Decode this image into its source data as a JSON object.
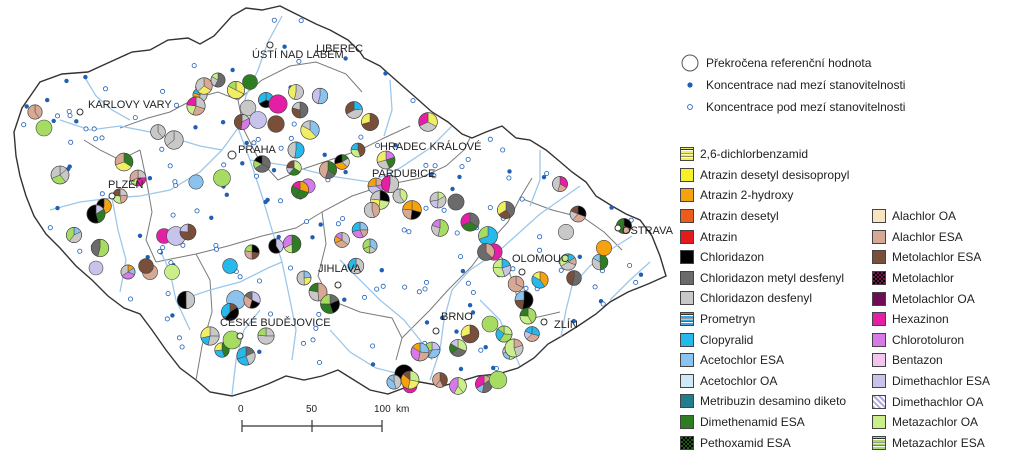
{
  "cities": {
    "usti": "ÚSTÍ NAD LABEM",
    "liberec": "LIBEREC",
    "karlovy_vary": "KARLOVY VARY",
    "praha": "PRAHA",
    "hradec": "HRADEC KRÁLOVÉ",
    "pardubice": "PARDUBICE",
    "plzen": "PLZEŇ",
    "jihlava": "JIHLAVA",
    "olomouc": "OLOMOUC",
    "ostrava": "OSTRAVA",
    "ceske_budejovice": "ČESKÉ BUDĚJOVICE",
    "brno": "BRNO",
    "zlin": "ZLÍN"
  },
  "legend_symbols": [
    {
      "label": "Překročena referenční hodnota",
      "symbol": "ring"
    },
    {
      "label": "Koncentrace nad mezí stanovitelnosti",
      "symbol": "dot-filled"
    },
    {
      "label": "Koncentrace pod mezí stanovitelnosti",
      "symbol": "dot-hollow"
    }
  ],
  "legend_substances_left": [
    {
      "label": "2,6-dichlorbenzamid",
      "color": "#f2ee64",
      "pattern": "hstripes"
    },
    {
      "label": "Atrazin desetyl desisopropyl",
      "color": "#f6f22a",
      "pattern": "solid"
    },
    {
      "label": "Atrazin 2-hydroxy",
      "color": "#f5a20e",
      "pattern": "solid"
    },
    {
      "label": "Atrazin desetyl",
      "color": "#ee5b1c",
      "pattern": "solid"
    },
    {
      "label": "Atrazin",
      "color": "#e41a1c",
      "pattern": "solid"
    },
    {
      "label": "Chloridazon",
      "color": "#000000",
      "pattern": "solid"
    },
    {
      "label": "Chloridazon metyl desfenyl",
      "color": "#6b6b6b",
      "pattern": "solid"
    },
    {
      "label": "Chloridazon desfenyl",
      "color": "#c8c8c8",
      "pattern": "solid"
    },
    {
      "label": "Prometryn",
      "color": "#3ea3e0",
      "pattern": "hstripes"
    },
    {
      "label": "Clopyralid",
      "color": "#27b9ec",
      "pattern": "solid"
    },
    {
      "label": "Acetochlor ESA",
      "color": "#8cc2ee",
      "pattern": "solid"
    },
    {
      "label": "Acetochlor OA",
      "color": "#cfe9f7",
      "pattern": "solid"
    },
    {
      "label": "Metribuzin desamino diketo",
      "color": "#1f7f8f",
      "pattern": "solid"
    },
    {
      "label": "Dimethenamid ESA",
      "color": "#2e7d22",
      "pattern": "solid"
    },
    {
      "label": "Pethoxamid ESA",
      "color": "#1e5a18",
      "pattern": "checker"
    }
  ],
  "legend_substances_right": [
    {
      "label": "Alachlor OA",
      "color": "#f9e4bf",
      "pattern": "solid"
    },
    {
      "label": "Alachlor ESA",
      "color": "#d7a994",
      "pattern": "solid"
    },
    {
      "label": "Metolachlor ESA",
      "color": "#7a4f3a",
      "pattern": "solid"
    },
    {
      "label": "Metolachlor",
      "color": "#7a0d4a",
      "pattern": "checker"
    },
    {
      "label": "Metolachlor OA",
      "color": "#6e0d56",
      "pattern": "solid"
    },
    {
      "label": "Hexazinon",
      "color": "#e51ea6",
      "pattern": "solid"
    },
    {
      "label": "Chlorotoluron",
      "color": "#d57ae8",
      "pattern": "solid"
    },
    {
      "label": "Bentazon",
      "color": "#f3c5ee",
      "pattern": "solid"
    },
    {
      "label": "Dimethachlor ESA",
      "color": "#c8c3ea",
      "pattern": "solid"
    },
    {
      "label": "Dimethachlor OA",
      "color": "#b0a8e0",
      "pattern": "diag"
    },
    {
      "label": "Metazachlor OA",
      "color": "#c9ee8a",
      "pattern": "solid"
    },
    {
      "label": "Metazachlor ESA",
      "color": "#a6dc62",
      "pattern": "hstripes"
    }
  ],
  "scale": {
    "ticks": [
      "0",
      "50",
      "100"
    ],
    "unit": "km"
  },
  "colors": {
    "river": "#9cc7ea",
    "border": "#333333",
    "region": "#7a7a7a",
    "dot": "#1f5fb4"
  }
}
